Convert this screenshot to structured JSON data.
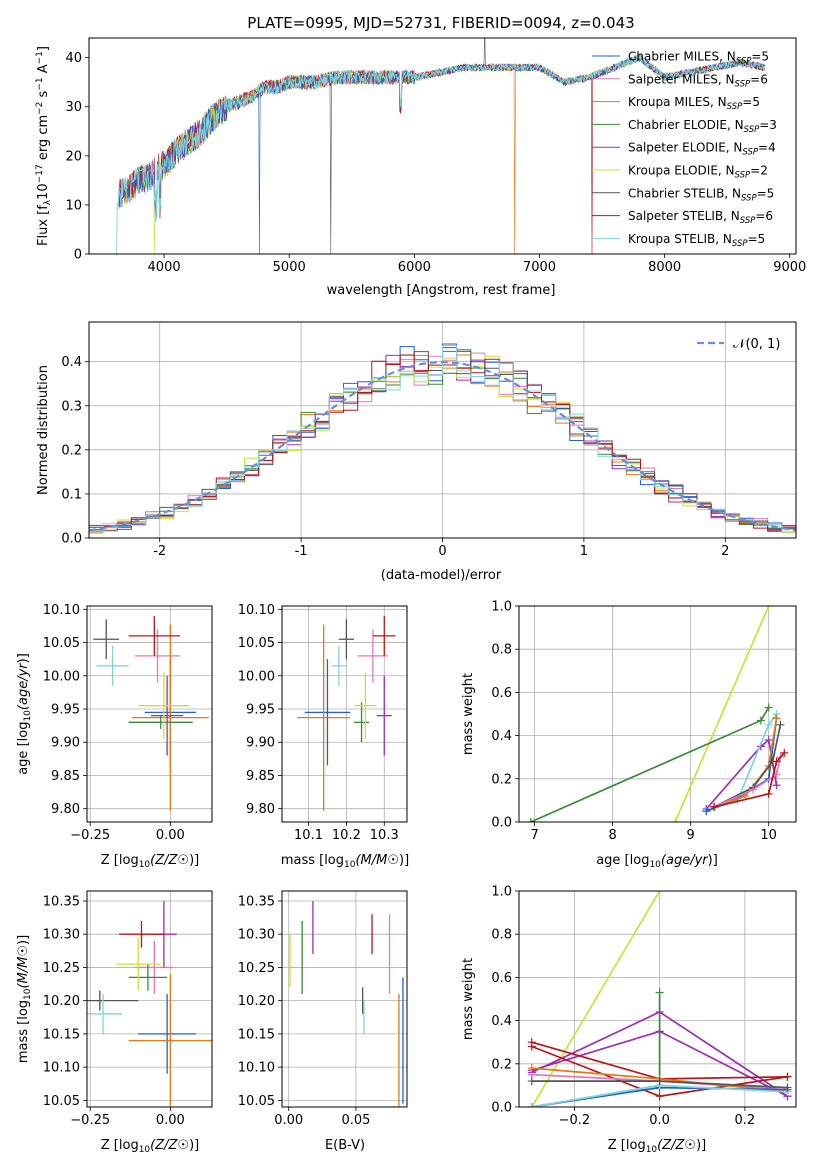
{
  "page": {
    "title": "PLATE=0995, MJD=52731, FIBERID=0094, z=0.043"
  },
  "colors": {
    "chabrier_miles": "#1f5fd1",
    "salpeter_miles": "#e377c2",
    "kroupa_miles": "#e07b1a",
    "chabrier_elodie": "#3a8a3a",
    "salpeter_elodie": "#9b2fb2",
    "kroupa_elodie": "#cde03a",
    "chabrier_stelib": "#555555",
    "salpeter_stelib": "#b2181b",
    "kroupa_stelib": "#7fd4dc",
    "normal": "#6a8fd6",
    "grid": "#b0b0b0"
  },
  "chart_data": [
    {
      "id": "spectrum",
      "type": "line",
      "title": "PLATE=0995, MJD=52731, FIBERID=0094, z=0.043",
      "xlabel": "wavelength [Angstrom, rest frame]",
      "ylabel_parts": [
        "Flux [f",
        "λ",
        "10",
        "−17",
        " erg cm",
        "−2",
        " s",
        "−1",
        " A",
        "−1",
        "]"
      ],
      "xlim": [
        3400,
        9050
      ],
      "ylim": [
        0,
        44
      ],
      "xticks": [
        4000,
        5000,
        6000,
        7000,
        8000,
        9000
      ],
      "yticks": [
        0,
        10,
        20,
        30,
        40
      ],
      "grid": false,
      "legend_position": "right",
      "x": [
        3620,
        3700,
        3800,
        3900,
        3950,
        4000,
        4100,
        4200,
        4300,
        4400,
        4500,
        4600,
        4700,
        4800,
        4900,
        5000,
        5200,
        5400,
        5600,
        5800,
        6000,
        6200,
        6400,
        6600,
        6800,
        7000,
        7200,
        7400,
        7600,
        7800,
        8000,
        8200,
        8400,
        8600,
        8800
      ],
      "y": [
        12,
        13,
        15,
        16,
        18,
        18,
        21,
        23,
        25,
        28,
        30,
        31,
        32,
        34,
        34,
        35,
        35,
        36,
        36,
        36,
        36,
        37,
        38,
        38,
        38,
        38,
        35,
        36,
        38,
        40,
        36,
        37,
        38,
        39,
        38
      ],
      "series": [
        {
          "name": "Chabrier MILES, N",
          "sub": "SSP",
          "suffix": "=5"
        },
        {
          "name": "Salpeter MILES, N",
          "sub": "SSP",
          "suffix": "=6"
        },
        {
          "name": "Kroupa MILES, N",
          "sub": "SSP",
          "suffix": "=5"
        },
        {
          "name": "Chabrier ELODIE, N",
          "sub": "SSP",
          "suffix": "=3"
        },
        {
          "name": "Salpeter ELODIE, N",
          "sub": "SSP",
          "suffix": "=4"
        },
        {
          "name": "Kroupa ELODIE, N",
          "sub": "SSP",
          "suffix": "=2"
        },
        {
          "name": "Chabrier STELIB, N",
          "sub": "SSP",
          "suffix": "=5"
        },
        {
          "name": "Salpeter STELIB, N",
          "sub": "SSP",
          "suffix": "=6"
        },
        {
          "name": "Kroupa STELIB, N",
          "sub": "SSP",
          "suffix": "=5"
        }
      ]
    },
    {
      "id": "residuals",
      "type": "line",
      "xlabel": "(data-model)/error",
      "ylabel": "Normed distribution",
      "xlim": [
        -2.5,
        2.5
      ],
      "ylim": [
        0,
        0.49
      ],
      "xticks": [
        -2,
        -1,
        0,
        1,
        2
      ],
      "yticks": [
        0.0,
        0.1,
        0.2,
        0.3,
        0.4
      ],
      "grid": true,
      "legend": "𝒩(0, 1)",
      "legend_position": "top-right",
      "bin_width": 0.1
    },
    {
      "id": "age_vs_Z",
      "type": "scatter",
      "xlabel": "Z [log10(Z/Z☉)]",
      "ylabel": "age  [log10(age/yr)]",
      "xlim": [
        -0.26,
        0.13
      ],
      "ylim": [
        9.78,
        10.105
      ],
      "xticks": [
        -0.25,
        0.0
      ],
      "xticklabels": [
        "−0.25",
        "0.00"
      ],
      "yticks": [
        9.8,
        9.85,
        9.9,
        9.95,
        10.0,
        10.05,
        10.1
      ],
      "grid": true,
      "points": [
        {
          "c": "chabrier_miles",
          "x": 0.0,
          "y": 9.945,
          "ex": 0.08,
          "ey": 0.08
        },
        {
          "c": "salpeter_miles",
          "x": -0.04,
          "y": 10.03,
          "ex": 0.07,
          "ey": 0.04
        },
        {
          "c": "kroupa_miles",
          "x": 0.0,
          "y": 9.937,
          "ex": 0.12,
          "ey": 0.14
        },
        {
          "c": "chabrier_elodie",
          "x": -0.03,
          "y": 9.93,
          "ex": 0.1,
          "ey": 0.01
        },
        {
          "c": "salpeter_elodie",
          "x": -0.01,
          "y": 9.94,
          "ex": 0.05,
          "ey": 0.06
        },
        {
          "c": "kroupa_elodie",
          "x": -0.02,
          "y": 9.955,
          "ex": 0.08,
          "ey": 0.05
        },
        {
          "c": "chabrier_stelib",
          "x": -0.2,
          "y": 10.055,
          "ex": 0.04,
          "ey": 0.03
        },
        {
          "c": "salpeter_stelib",
          "x": -0.05,
          "y": 10.06,
          "ex": 0.08,
          "ey": 0.03
        },
        {
          "c": "kroupa_stelib",
          "x": -0.18,
          "y": 10.015,
          "ex": 0.05,
          "ey": 0.03
        }
      ]
    },
    {
      "id": "age_vs_mass",
      "type": "scatter",
      "xlabel": "mass [log10(M/M☉)]",
      "xlim": [
        10.03,
        10.36
      ],
      "ylim": [
        9.78,
        10.105
      ],
      "xticks": [
        10.1,
        10.2,
        10.3
      ],
      "yticks": [
        9.8,
        9.85,
        9.9,
        9.95,
        10.0,
        10.05,
        10.1
      ],
      "grid": true,
      "points": [
        {
          "c": "chabrier_miles",
          "x": 10.15,
          "y": 9.945,
          "ey": 0.08,
          "ex": 0.06
        },
        {
          "c": "salpeter_miles",
          "x": 10.27,
          "y": 10.03,
          "ey": 0.04,
          "ex": 0.04
        },
        {
          "c": "kroupa_miles",
          "x": 10.14,
          "y": 9.937,
          "ey": 0.14,
          "ex": 0.07
        },
        {
          "c": "chabrier_elodie",
          "x": 10.24,
          "y": 9.93,
          "ey": 0.03,
          "ex": 0.02
        },
        {
          "c": "salpeter_elodie",
          "x": 10.3,
          "y": 9.94,
          "ey": 0.06,
          "ex": 0.02
        },
        {
          "c": "kroupa_elodie",
          "x": 10.25,
          "y": 9.955,
          "ey": 0.05,
          "ex": 0.03
        },
        {
          "c": "chabrier_stelib",
          "x": 10.2,
          "y": 10.055,
          "ey": 0.03,
          "ex": 0.02
        },
        {
          "c": "salpeter_stelib",
          "x": 10.3,
          "y": 10.06,
          "ey": 0.03,
          "ex": 0.03
        },
        {
          "c": "kroupa_stelib",
          "x": 10.18,
          "y": 10.015,
          "ey": 0.03,
          "ex": 0.02
        }
      ]
    },
    {
      "id": "weight_vs_age",
      "type": "line",
      "xlabel": "age  [log10(age/yr)]",
      "ylabel": "mass weight",
      "xlim": [
        6.8,
        10.35
      ],
      "ylim": [
        0,
        1.0
      ],
      "xticks": [
        7,
        8,
        9,
        10
      ],
      "yticks": [
        0.0,
        0.2,
        0.4,
        0.6,
        0.8,
        1.0
      ],
      "grid": true,
      "series": [
        {
          "c": "kroupa_elodie",
          "x": [
            8.8,
            10.0
          ],
          "y": [
            0.0,
            1.0
          ]
        },
        {
          "c": "chabrier_elodie",
          "x": [
            6.95,
            9.9,
            10.0
          ],
          "y": [
            0.0,
            0.47,
            0.53
          ]
        },
        {
          "c": "salpeter_elodie",
          "x": [
            9.2,
            9.9,
            10.0,
            10.1
          ],
          "y": [
            0.06,
            0.35,
            0.38,
            0.17
          ]
        },
        {
          "c": "kroupa_stelib",
          "x": [
            9.2,
            9.6,
            10.0,
            10.1
          ],
          "y": [
            0.05,
            0.1,
            0.45,
            0.5
          ]
        },
        {
          "c": "chabrier_miles",
          "x": [
            9.2,
            9.6,
            10.0,
            10.1
          ],
          "y": [
            0.05,
            0.11,
            0.2,
            0.48
          ]
        },
        {
          "c": "kroupa_miles",
          "x": [
            9.3,
            9.7,
            10.0,
            10.1
          ],
          "y": [
            0.07,
            0.12,
            0.26,
            0.48
          ]
        },
        {
          "c": "chabrier_stelib",
          "x": [
            9.3,
            9.8,
            10.05,
            10.15
          ],
          "y": [
            0.07,
            0.16,
            0.28,
            0.45
          ]
        },
        {
          "c": "salpeter_miles",
          "x": [
            9.3,
            9.8,
            10.1,
            10.15
          ],
          "y": [
            0.07,
            0.15,
            0.22,
            0.3
          ]
        },
        {
          "c": "salpeter_stelib",
          "x": [
            9.3,
            10.0,
            10.1,
            10.2
          ],
          "y": [
            0.07,
            0.13,
            0.28,
            0.32
          ]
        }
      ]
    },
    {
      "id": "mass_vs_Z",
      "type": "scatter",
      "xlabel": "Z [log10(Z/Z☉)]",
      "ylabel": "mass [log10(M/M☉)]",
      "xlim": [
        -0.26,
        0.13
      ],
      "ylim": [
        10.04,
        10.365
      ],
      "xticks": [
        -0.25,
        0.0
      ],
      "xticklabels": [
        "−0.25",
        "0.00"
      ],
      "yticks": [
        10.05,
        10.1,
        10.15,
        10.2,
        10.25,
        10.3,
        10.35
      ],
      "grid": true,
      "points": [
        {
          "c": "chabrier_miles",
          "x": -0.01,
          "y": 10.15,
          "ex": 0.09,
          "ey": 0.06
        },
        {
          "c": "salpeter_miles",
          "x": -0.05,
          "y": 10.25,
          "ex": 0.06,
          "ey": 0.04
        },
        {
          "c": "kroupa_miles",
          "x": 0.0,
          "y": 10.14,
          "ex": 0.13,
          "ey": 0.1
        },
        {
          "c": "chabrier_elodie",
          "x": -0.07,
          "y": 10.235,
          "ex": 0.06,
          "ey": 0.02
        },
        {
          "c": "salpeter_elodie",
          "x": -0.02,
          "y": 10.3,
          "ex": 0.04,
          "ey": 0.05
        },
        {
          "c": "kroupa_elodie",
          "x": -0.1,
          "y": 10.255,
          "ex": 0.07,
          "ey": 0.04
        },
        {
          "c": "chabrier_stelib",
          "x": -0.22,
          "y": 10.2,
          "ex": 0.12,
          "ey": 0.015
        },
        {
          "c": "salpeter_stelib",
          "x": -0.09,
          "y": 10.3,
          "ex": 0.07,
          "ey": 0.02
        },
        {
          "c": "kroupa_stelib",
          "x": -0.21,
          "y": 10.18,
          "ex": 0.06,
          "ey": 0.03
        }
      ]
    },
    {
      "id": "mass_vs_ebv",
      "type": "scatter",
      "xlabel": "E(B-V)",
      "xlim": [
        -0.005,
        0.088
      ],
      "ylim": [
        10.04,
        10.365
      ],
      "xticks": [
        0.0,
        0.05
      ],
      "xticklabels": [
        "0.00",
        "0.05"
      ],
      "yticks": [
        10.05,
        10.1,
        10.15,
        10.2,
        10.25,
        10.3,
        10.35
      ],
      "grid": true,
      "points": [
        {
          "c": "chabrier_miles",
          "x": 0.085,
          "y": 10.14,
          "ey": 0.095
        },
        {
          "c": "salpeter_miles",
          "x": 0.075,
          "y": 10.27,
          "ey": 0.06
        },
        {
          "c": "kroupa_miles",
          "x": 0.082,
          "y": 10.125,
          "ey": 0.085
        },
        {
          "c": "chabrier_elodie",
          "x": 0.01,
          "y": 10.265,
          "ey": 0.055
        },
        {
          "c": "salpeter_elodie",
          "x": 0.018,
          "y": 10.31,
          "ey": 0.04
        },
        {
          "c": "kroupa_elodie",
          "x": 0.001,
          "y": 10.26,
          "ey": 0.04
        },
        {
          "c": "chabrier_stelib",
          "x": 0.055,
          "y": 10.2,
          "ey": 0.02
        },
        {
          "c": "salpeter_stelib",
          "x": 0.062,
          "y": 10.3,
          "ey": 0.03
        },
        {
          "c": "kroupa_stelib",
          "x": 0.056,
          "y": 10.175,
          "ey": 0.025
        }
      ]
    },
    {
      "id": "weight_vs_Z",
      "type": "line",
      "xlabel": "Z [log10(Z/Z☉)]",
      "ylabel": "mass weight",
      "xlim": [
        -0.33,
        0.32
      ],
      "ylim": [
        0,
        1.0
      ],
      "xticks": [
        -0.2,
        0.0,
        0.2
      ],
      "xticklabels": [
        "−0.2",
        "0.0",
        "0.2"
      ],
      "yticks": [
        0.0,
        0.2,
        0.4,
        0.6,
        0.8,
        1.0
      ],
      "grid": true,
      "series": [
        {
          "c": "kroupa_elodie",
          "x": [
            -0.3,
            0.0
          ],
          "y": [
            0.0,
            1.0
          ]
        },
        {
          "c": "chabrier_elodie",
          "x": [
            -0.3,
            0.0,
            0.0
          ],
          "y": [
            0.0,
            0.1,
            0.53
          ]
        },
        {
          "c": "salpeter_elodie",
          "x": [
            -0.3,
            0.0,
            0.3
          ],
          "y": [
            0.17,
            0.35,
            0.05
          ]
        },
        {
          "c": "salpeter_elodie",
          "x": [
            -0.3,
            0.0,
            0.3
          ],
          "y": [
            0.16,
            0.44,
            0.05
          ]
        },
        {
          "c": "salpeter_stelib",
          "x": [
            -0.3,
            0.0,
            0.3
          ],
          "y": [
            0.28,
            0.05,
            0.14
          ]
        },
        {
          "c": "salpeter_stelib",
          "x": [
            -0.3,
            0.0,
            0.3
          ],
          "y": [
            0.3,
            0.13,
            0.14
          ]
        },
        {
          "c": "salpeter_miles",
          "x": [
            -0.3,
            0.0,
            0.3
          ],
          "y": [
            0.15,
            0.12,
            0.08
          ]
        },
        {
          "c": "kroupa_miles",
          "x": [
            -0.3,
            0.0,
            0.3
          ],
          "y": [
            0.18,
            0.13,
            0.07
          ]
        },
        {
          "c": "chabrier_miles",
          "x": [
            -0.3,
            0.0,
            0.3
          ],
          "y": [
            0.0,
            0.09,
            0.08
          ]
        },
        {
          "c": "kroupa_stelib",
          "x": [
            -0.3,
            0.0,
            0.3
          ],
          "y": [
            0.0,
            0.1,
            0.07
          ]
        },
        {
          "c": "chabrier_stelib",
          "x": [
            -0.3,
            0.0,
            0.3
          ],
          "y": [
            0.12,
            0.12,
            0.09
          ]
        }
      ]
    }
  ]
}
